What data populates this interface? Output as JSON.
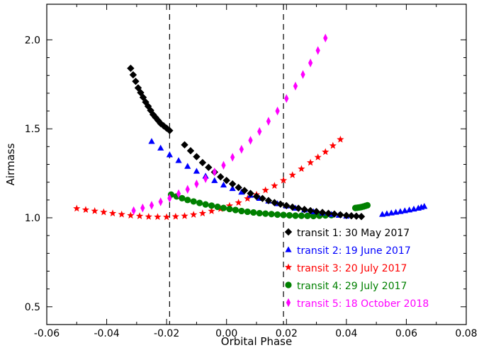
{
  "chart_data": {
    "type": "scatter",
    "xlabel": "Orbital Phase",
    "ylabel": "Airmass",
    "xlim": [
      -0.06,
      0.08
    ],
    "ylim": [
      0.4,
      2.2
    ],
    "x_ticks": [
      -0.06,
      -0.04,
      -0.02,
      0.0,
      0.02,
      0.04,
      0.06,
      0.08
    ],
    "x_tick_labels": [
      "-0.06",
      "-0.04",
      "-0.02",
      "0.00",
      "0.02",
      "0.04",
      "0.06",
      "0.08"
    ],
    "y_ticks": [
      0.5,
      1.0,
      1.5,
      2.0
    ],
    "y_tick_labels": [
      "0.5",
      "1.0",
      "1.5",
      "2.0"
    ],
    "vlines": [
      -0.019,
      0.019
    ],
    "legend_position": "lower-right",
    "series": [
      {
        "name": "transit 1:  30 May 2017",
        "color": "#000000",
        "marker": "diamond",
        "segments": [
          {
            "x": [
              -0.032,
              -0.0295,
              -0.027,
              -0.0245,
              -0.022,
              -0.019
            ],
            "y": [
              1.84,
              1.73,
              1.65,
              1.58,
              1.53,
              1.49
            ]
          },
          {
            "x": [
              -0.014,
              -0.008,
              -0.002,
              0.004,
              0.01,
              0.016,
              0.022,
              0.028,
              0.034,
              0.04,
              0.045
            ],
            "y": [
              1.41,
              1.31,
              1.23,
              1.17,
              1.12,
              1.085,
              1.06,
              1.04,
              1.025,
              1.013,
              1.007
            ]
          }
        ]
      },
      {
        "name": "transit 2:  19 June 2017",
        "color": "#0000ff",
        "marker": "triangle",
        "segments": [
          {
            "x": [
              -0.025,
              -0.019,
              -0.013,
              -0.007,
              -0.001,
              0.005,
              0.011,
              0.017,
              0.023,
              0.029,
              0.035,
              0.04
            ],
            "y": [
              1.43,
              1.355,
              1.29,
              1.235,
              1.185,
              1.145,
              1.11,
              1.08,
              1.055,
              1.035,
              1.02,
              1.01
            ]
          },
          {
            "x": [
              0.052,
              0.055,
              0.058,
              0.061,
              0.064,
              0.066
            ],
            "y": [
              1.02,
              1.028,
              1.036,
              1.045,
              1.055,
              1.065
            ]
          }
        ]
      },
      {
        "name": "transit 3:  20 July 2017",
        "color": "#ff0000",
        "marker": "star",
        "segments": [
          {
            "x": [
              -0.05,
              -0.044,
              -0.038,
              -0.032,
              -0.026,
              -0.02,
              -0.014,
              -0.008,
              -0.002,
              0.004,
              0.01,
              0.016,
              0.022,
              0.028,
              0.033,
              0.038
            ],
            "y": [
              1.052,
              1.038,
              1.025,
              1.013,
              1.006,
              1.004,
              1.01,
              1.025,
              1.05,
              1.085,
              1.13,
              1.18,
              1.24,
              1.31,
              1.37,
              1.44
            ]
          }
        ]
      },
      {
        "name": "transit 4:  29 July 2017",
        "color": "#008000",
        "marker": "circle",
        "segments": [
          {
            "x": [
              -0.0185,
              -0.013,
              -0.007,
              -0.001,
              0.005,
              0.011,
              0.017,
              0.023,
              0.029,
              0.035
            ],
            "y": [
              1.13,
              1.1,
              1.075,
              1.055,
              1.038,
              1.026,
              1.018,
              1.012,
              1.01,
              1.015
            ]
          },
          {
            "x": [
              0.043,
              0.045,
              0.047
            ],
            "y": [
              1.055,
              1.06,
              1.07
            ]
          }
        ]
      },
      {
        "name": "transit 5:  18 October 2018",
        "color": "#ff00ff",
        "marker": "thin-diamond",
        "segments": [
          {
            "x": [
              -0.031,
              -0.025,
              -0.019,
              -0.013,
              -0.007,
              -0.001,
              0.005,
              0.011,
              0.017,
              0.023,
              0.028,
              0.033
            ],
            "y": [
              1.04,
              1.07,
              1.11,
              1.16,
              1.22,
              1.295,
              1.385,
              1.485,
              1.6,
              1.74,
              1.87,
              2.01
            ]
          }
        ]
      }
    ]
  }
}
